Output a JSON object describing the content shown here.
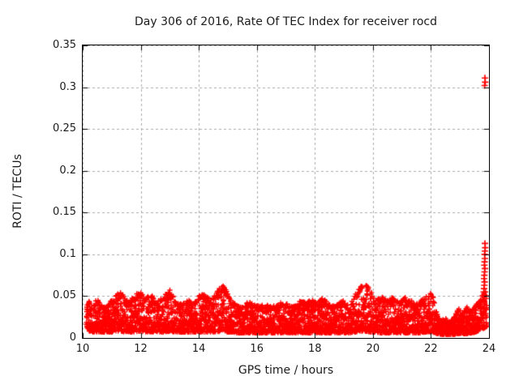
{
  "figure": {
    "title": "Day 306 of 2016, Rate Of TEC Index for receiver rocd",
    "xlabel": "GPS time / hours",
    "ylabel": "ROTI / TECUs"
  },
  "chart_data": {
    "type": "scatter",
    "title": "Day 306 of 2016, Rate Of TEC Index for receiver rocd",
    "xlabel": "GPS time / hours",
    "ylabel": "ROTI / TECUs",
    "xlim": [
      10,
      24
    ],
    "ylim": [
      0,
      0.35
    ],
    "xticks": [
      10,
      12,
      14,
      16,
      18,
      20,
      22,
      24
    ],
    "xtick_labels": [
      "10",
      "12",
      "14",
      "16",
      "18",
      "20",
      "22",
      "24"
    ],
    "yticks": [
      0,
      0.05,
      0.1,
      0.15,
      0.2,
      0.25,
      0.3,
      0.35
    ],
    "ytick_labels": [
      "0",
      "0.05",
      "0.1",
      "0.15",
      "0.2",
      "0.25",
      "0.3",
      "0.35"
    ],
    "grid": true,
    "grid_style": "dashed",
    "grid_color": "#a9a9a9",
    "legend": "none",
    "marker": {
      "symbol": "+",
      "color": "#ff0000"
    },
    "series_name": "ROTI",
    "time_start": 10.13,
    "time_end": 23.94,
    "band_note": "dense 30s scatter band; triples are [gps_hour, typical_min_ROTI, local_peak_ROTI]",
    "band": [
      [
        10.13,
        0.014,
        0.042
      ],
      [
        10.22,
        0.008,
        0.046
      ],
      [
        10.35,
        0.007,
        0.038
      ],
      [
        10.5,
        0.007,
        0.048
      ],
      [
        10.65,
        0.007,
        0.04
      ],
      [
        10.8,
        0.007,
        0.036
      ],
      [
        10.95,
        0.007,
        0.044
      ],
      [
        11.1,
        0.007,
        0.05
      ],
      [
        11.3,
        0.008,
        0.058
      ],
      [
        11.45,
        0.007,
        0.048
      ],
      [
        11.6,
        0.007,
        0.044
      ],
      [
        11.75,
        0.007,
        0.05
      ],
      [
        11.9,
        0.008,
        0.054
      ],
      [
        12.0,
        0.008,
        0.058
      ],
      [
        12.15,
        0.007,
        0.046
      ],
      [
        12.35,
        0.007,
        0.056
      ],
      [
        12.5,
        0.007,
        0.042
      ],
      [
        12.65,
        0.007,
        0.046
      ],
      [
        12.8,
        0.007,
        0.05
      ],
      [
        13.0,
        0.008,
        0.058
      ],
      [
        13.15,
        0.007,
        0.048
      ],
      [
        13.3,
        0.007,
        0.042
      ],
      [
        13.45,
        0.007,
        0.04
      ],
      [
        13.6,
        0.007,
        0.046
      ],
      [
        13.8,
        0.007,
        0.042
      ],
      [
        13.95,
        0.007,
        0.048
      ],
      [
        14.1,
        0.007,
        0.054
      ],
      [
        14.25,
        0.007,
        0.05
      ],
      [
        14.45,
        0.007,
        0.046
      ],
      [
        14.6,
        0.007,
        0.054
      ],
      [
        14.85,
        0.008,
        0.066
      ],
      [
        15.0,
        0.007,
        0.052
      ],
      [
        15.15,
        0.007,
        0.044
      ],
      [
        15.3,
        0.006,
        0.04
      ],
      [
        15.5,
        0.006,
        0.038
      ],
      [
        15.7,
        0.006,
        0.044
      ],
      [
        15.9,
        0.006,
        0.04
      ],
      [
        16.1,
        0.006,
        0.038
      ],
      [
        16.3,
        0.006,
        0.042
      ],
      [
        16.5,
        0.006,
        0.038
      ],
      [
        16.7,
        0.006,
        0.04
      ],
      [
        16.9,
        0.006,
        0.044
      ],
      [
        17.1,
        0.006,
        0.04
      ],
      [
        17.3,
        0.006,
        0.038
      ],
      [
        17.5,
        0.006,
        0.045
      ],
      [
        17.7,
        0.006,
        0.042
      ],
      [
        17.9,
        0.006,
        0.046
      ],
      [
        18.1,
        0.006,
        0.042
      ],
      [
        18.25,
        0.006,
        0.048
      ],
      [
        18.4,
        0.006,
        0.044
      ],
      [
        18.6,
        0.006,
        0.038
      ],
      [
        18.8,
        0.006,
        0.042
      ],
      [
        19.0,
        0.006,
        0.046
      ],
      [
        19.2,
        0.006,
        0.04
      ],
      [
        19.4,
        0.007,
        0.054
      ],
      [
        19.6,
        0.008,
        0.062
      ],
      [
        19.75,
        0.008,
        0.065
      ],
      [
        19.9,
        0.007,
        0.058
      ],
      [
        20.1,
        0.006,
        0.046
      ],
      [
        20.3,
        0.006,
        0.05
      ],
      [
        20.5,
        0.006,
        0.045
      ],
      [
        20.7,
        0.006,
        0.049
      ],
      [
        20.9,
        0.006,
        0.043
      ],
      [
        21.1,
        0.006,
        0.049
      ],
      [
        21.3,
        0.006,
        0.045
      ],
      [
        21.5,
        0.006,
        0.041
      ],
      [
        21.7,
        0.006,
        0.046
      ],
      [
        21.9,
        0.007,
        0.052
      ],
      [
        22.05,
        0.007,
        0.055
      ],
      [
        22.2,
        0.005,
        0.03
      ],
      [
        22.35,
        0.004,
        0.02
      ],
      [
        22.5,
        0.004,
        0.025
      ],
      [
        22.65,
        0.004,
        0.02
      ],
      [
        22.8,
        0.004,
        0.026
      ],
      [
        22.95,
        0.005,
        0.036
      ],
      [
        23.1,
        0.005,
        0.03
      ],
      [
        23.25,
        0.005,
        0.038
      ],
      [
        23.4,
        0.006,
        0.032
      ],
      [
        23.55,
        0.007,
        0.04
      ],
      [
        23.7,
        0.01,
        0.048
      ],
      [
        23.85,
        0.012,
        0.055
      ],
      [
        23.94,
        0.014,
        0.056
      ]
    ],
    "outliers": [
      [
        23.8,
        0.05
      ],
      [
        23.82,
        0.055
      ],
      [
        23.83,
        0.059
      ],
      [
        23.84,
        0.063
      ],
      [
        23.85,
        0.067
      ],
      [
        23.83,
        0.071
      ],
      [
        23.84,
        0.075
      ],
      [
        23.85,
        0.079
      ],
      [
        23.86,
        0.083
      ],
      [
        23.84,
        0.087
      ],
      [
        23.85,
        0.091
      ],
      [
        23.86,
        0.095
      ],
      [
        23.85,
        0.1
      ],
      [
        23.86,
        0.104
      ],
      [
        23.87,
        0.108
      ],
      [
        23.86,
        0.113
      ],
      [
        23.85,
        0.302
      ],
      [
        23.87,
        0.306
      ],
      [
        23.86,
        0.311
      ]
    ]
  }
}
